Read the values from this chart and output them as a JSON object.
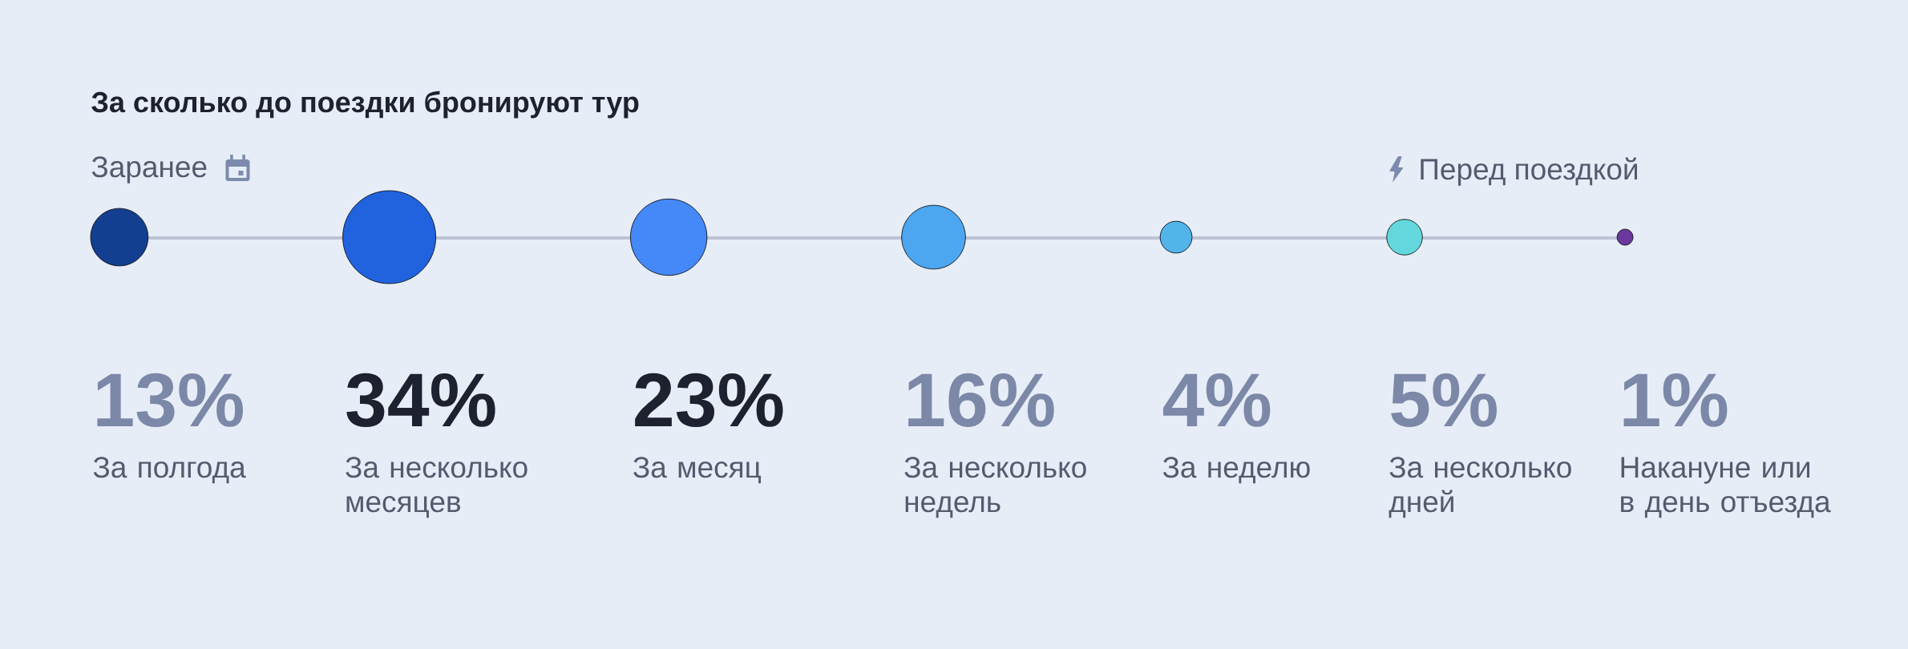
{
  "chart_data": {
    "type": "other",
    "title": "За сколько до поездки бронируют тур",
    "categories": [
      "За полгода",
      "За несколько месяцев",
      "За месяц",
      "За несколько недель",
      "За неделю",
      "За несколько дней",
      "Накануне или в день отъезда"
    ],
    "values": [
      13,
      34,
      23,
      16,
      4,
      5,
      1
    ],
    "value_labels": [
      "13%",
      "34%",
      "23%",
      "16%",
      "4%",
      "5%",
      "1%"
    ],
    "colors": [
      "#133f91",
      "#2163de",
      "#4588f8",
      "#4ca6f0",
      "#53b4ea",
      "#63d7dc",
      "#69399e"
    ],
    "annotations": [
      "Заранее",
      "Перед поездкой"
    ]
  }
}
